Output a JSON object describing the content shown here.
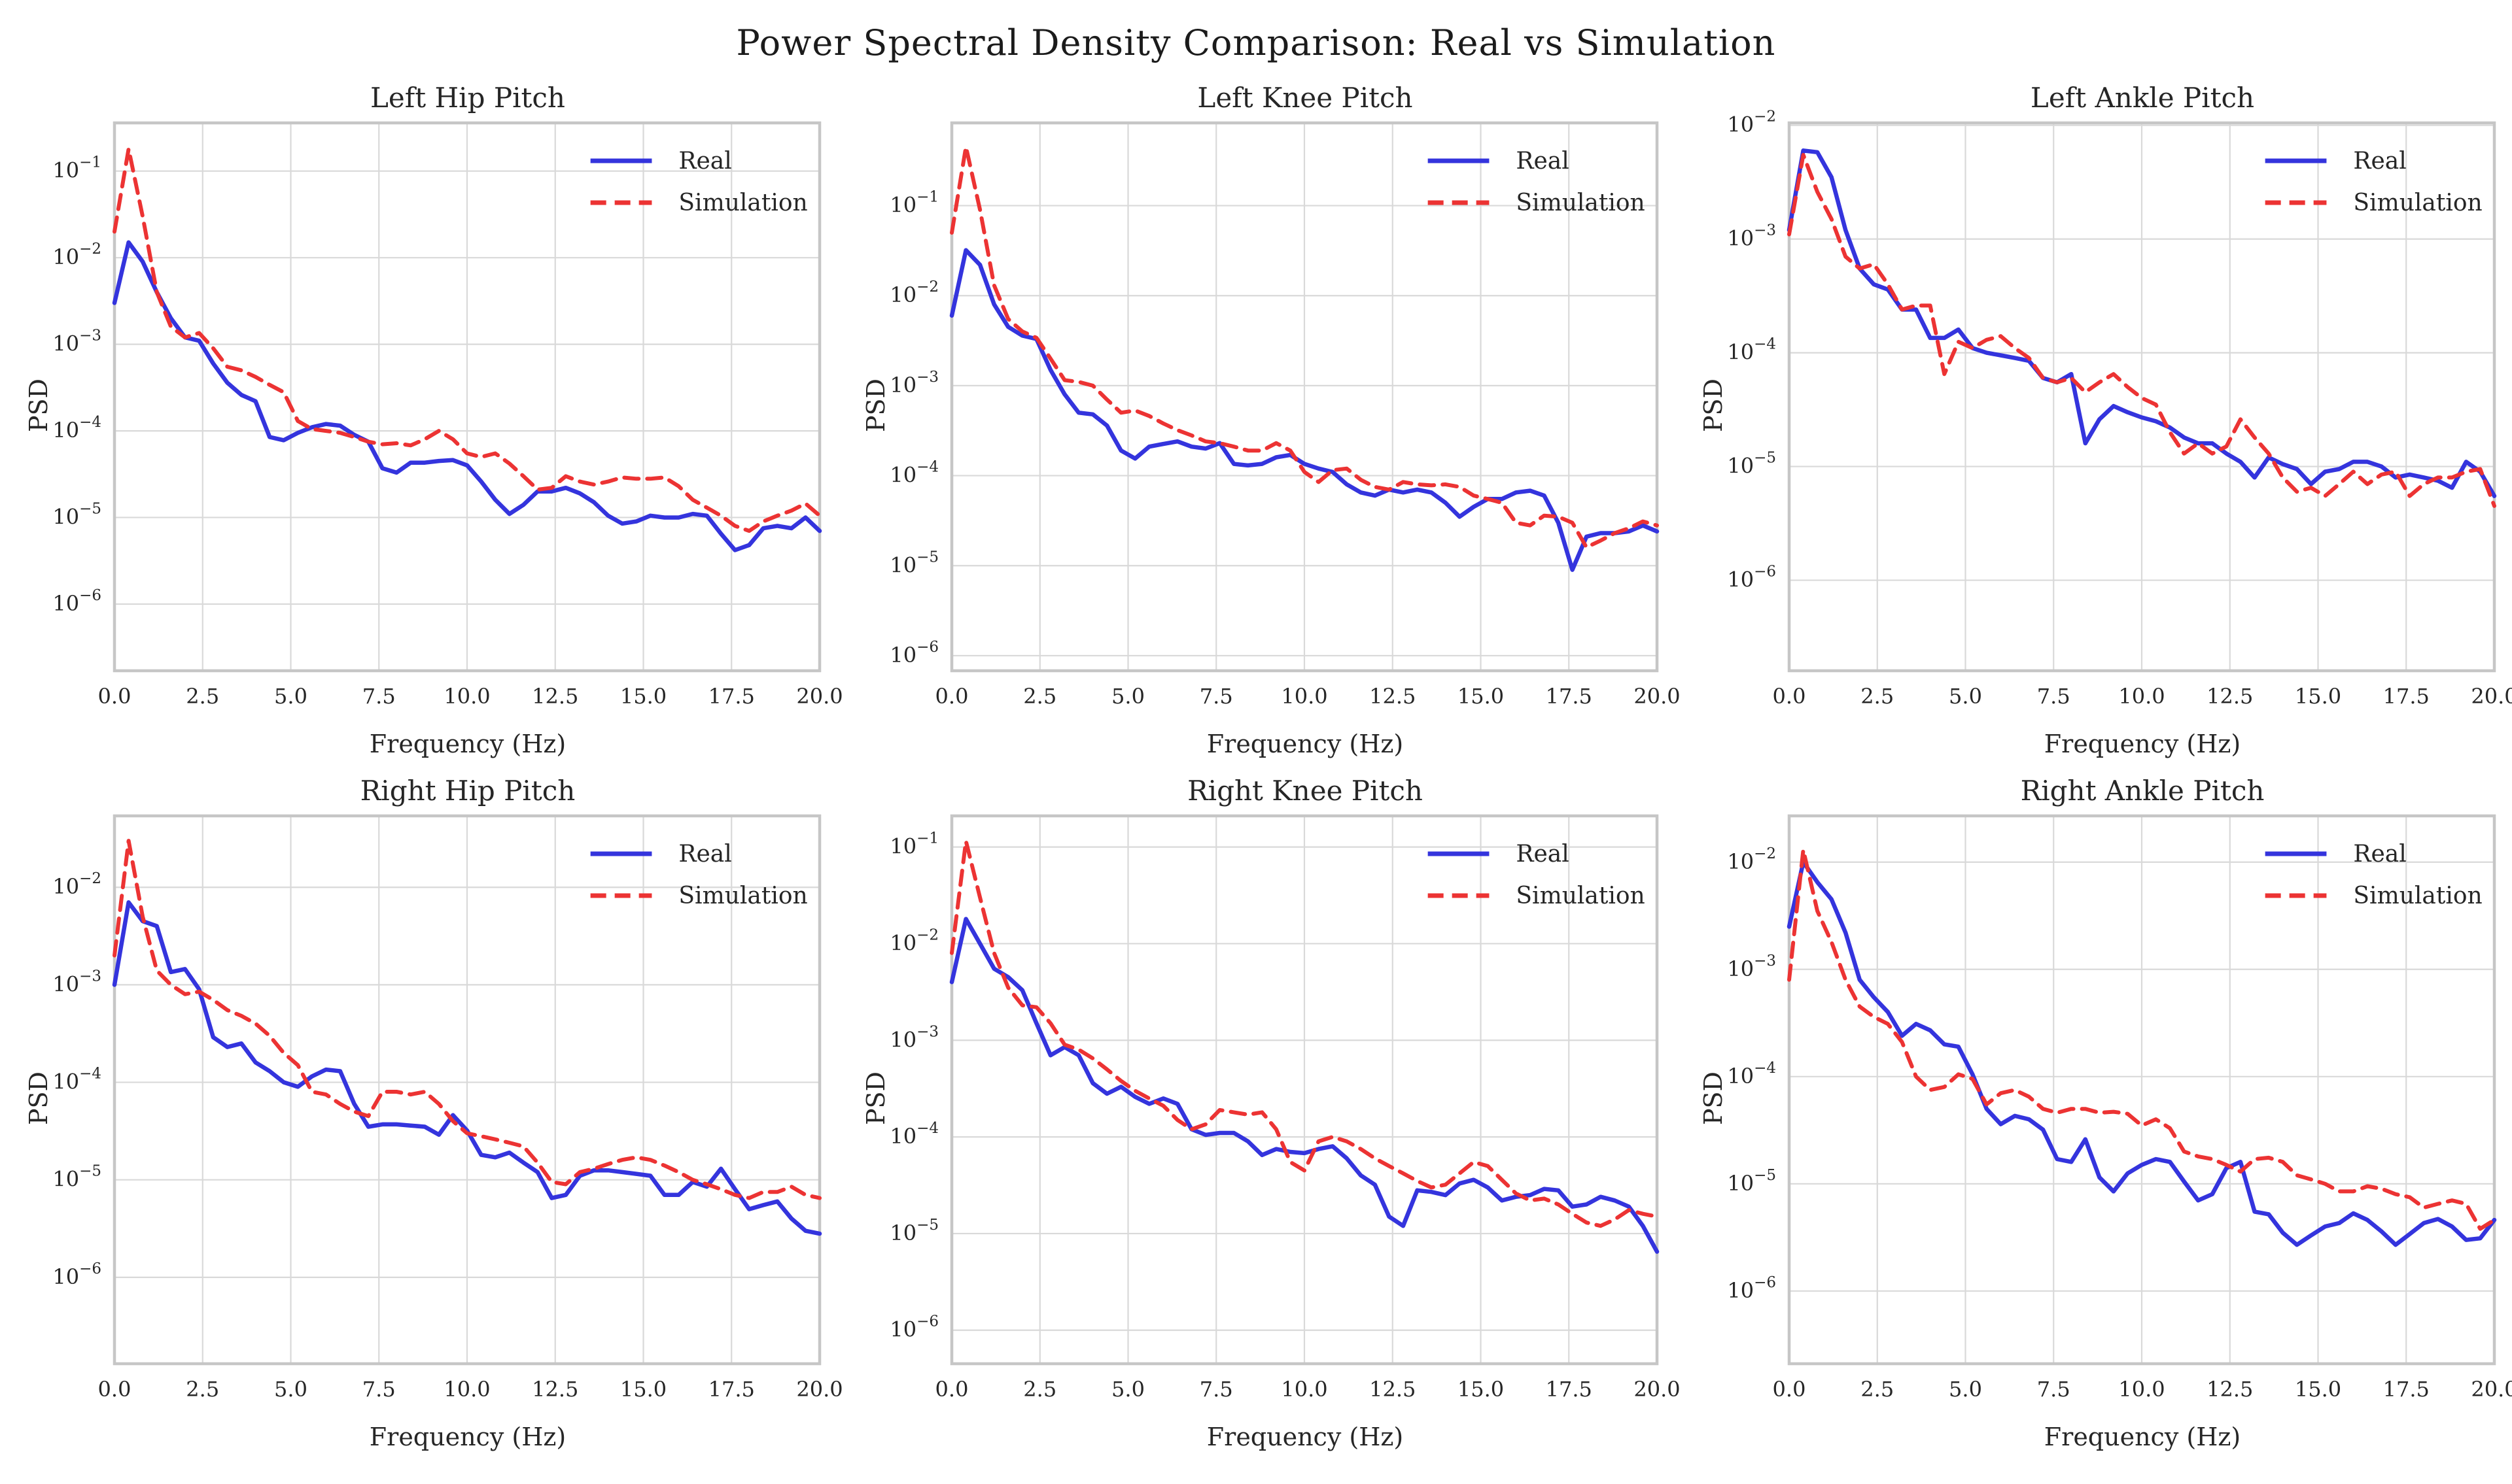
{
  "figure": {
    "title": "Power Spectral Density Comparison: Real vs Simulation"
  },
  "colors": {
    "real": "#3434dd",
    "simulation": "#ec3333",
    "grid": "#d9d9d9",
    "spine": "#c6c6c6",
    "text": "#262626"
  },
  "axes": {
    "xlabel": "Frequency (Hz)",
    "ylabel": "PSD",
    "xlim": [
      0,
      20
    ],
    "x_ticks": [
      0,
      2.5,
      5,
      7.5,
      10,
      12.5,
      15,
      17.5,
      20
    ],
    "x_tick_labels": [
      "0.0",
      "2.5",
      "5.0",
      "7.5",
      "10.0",
      "12.5",
      "15.0",
      "17.5",
      "20.0"
    ],
    "x": [
      0,
      0.4,
      0.8,
      1.2,
      1.6,
      2,
      2.4,
      2.8,
      3.2,
      3.6,
      4,
      4.4,
      4.8,
      5.2,
      5.6,
      6,
      6.4,
      6.8,
      7.2,
      7.6,
      8,
      8.4,
      8.8,
      9.2,
      9.6,
      10,
      10.4,
      10.8,
      11.2,
      11.6,
      12,
      12.4,
      12.8,
      13.2,
      13.6,
      14,
      14.4,
      14.8,
      15.2,
      15.6,
      16,
      16.4,
      16.8,
      17.2,
      17.6,
      18,
      18.4,
      18.8,
      19.2,
      19.6,
      20
    ]
  },
  "legend": {
    "real_label": "Real",
    "simulation_label": "Simulation",
    "position": "upper right",
    "frame": false
  },
  "chart_data": [
    {
      "type": "line",
      "title": "Left Hip Pitch",
      "xlabel": "Frequency (Hz)",
      "ylabel": "PSD",
      "yscale": "log",
      "ylim": [
        1.7e-07,
        0.36
      ],
      "y_tick_exponents": [
        -1,
        -2,
        -3,
        -4,
        -5,
        -6
      ],
      "series": [
        {
          "name": "Real",
          "values": [
            0.003,
            0.015,
            0.009,
            0.004,
            0.002,
            0.0012,
            0.0011,
            0.0006,
            0.00036,
            0.00026,
            0.00022,
            8.5e-05,
            7.8e-05,
            9.5e-05,
            0.00011,
            0.00012,
            0.000115,
            9e-05,
            7.5e-05,
            3.7e-05,
            3.3e-05,
            4.3e-05,
            4.3e-05,
            4.5e-05,
            4.6e-05,
            4e-05,
            2.6e-05,
            1.6e-05,
            1.1e-05,
            1.4e-05,
            2e-05,
            2e-05,
            2.2e-05,
            1.9e-05,
            1.5e-05,
            1.05e-05,
            8.5e-06,
            9e-06,
            1.05e-05,
            1e-05,
            1e-05,
            1.1e-05,
            1.05e-05,
            6.5e-06,
            4.2e-06,
            4.8e-06,
            7.5e-06,
            8e-06,
            7.5e-06,
            1e-05,
            7e-06
          ]
        },
        {
          "name": "Simulation",
          "values": [
            0.02,
            0.18,
            0.03,
            0.004,
            0.0016,
            0.0012,
            0.00135,
            0.0009,
            0.00055,
            0.0005,
            0.00042,
            0.00034,
            0.00028,
            0.00013,
            0.000105,
            0.0001,
            9.5e-05,
            8.5e-05,
            7.5e-05,
            7e-05,
            7.2e-05,
            6.8e-05,
            8e-05,
            0.0001,
            8e-05,
            5.5e-05,
            5e-05,
            5.5e-05,
            4.2e-05,
            3e-05,
            2.1e-05,
            2.2e-05,
            3e-05,
            2.6e-05,
            2.4e-05,
            2.6e-05,
            2.9e-05,
            2.8e-05,
            2.8e-05,
            2.9e-05,
            2.3e-05,
            1.6e-05,
            1.3e-05,
            1.05e-05,
            8e-06,
            7e-06,
            9e-06,
            1.05e-05,
            1.2e-05,
            1.45e-05,
            1.05e-05
          ]
        }
      ]
    },
    {
      "type": "line",
      "title": "Left Knee Pitch",
      "xlabel": "Frequency (Hz)",
      "ylabel": "PSD",
      "yscale": "log",
      "ylim": [
        6.8e-07,
        0.83
      ],
      "y_tick_exponents": [
        -1,
        -2,
        -3,
        -4,
        -5,
        -6
      ],
      "series": [
        {
          "name": "Real",
          "values": [
            0.006,
            0.032,
            0.022,
            0.008,
            0.0045,
            0.0036,
            0.0033,
            0.0015,
            0.0008,
            0.0005,
            0.00048,
            0.00036,
            0.00019,
            0.000155,
            0.00021,
            0.000225,
            0.00024,
            0.00021,
            0.0002,
            0.00023,
            0.000135,
            0.00013,
            0.000135,
            0.00016,
            0.00017,
            0.000135,
            0.00012,
            0.00011,
            8e-05,
            6.5e-05,
            6e-05,
            7e-05,
            6.5e-05,
            7e-05,
            6.5e-05,
            5e-05,
            3.5e-05,
            4.5e-05,
            5.5e-05,
            5.5e-05,
            6.5e-05,
            6.8e-05,
            6e-05,
            3e-05,
            9e-06,
            2.1e-05,
            2.3e-05,
            2.3e-05,
            2.4e-05,
            2.8e-05,
            2.4e-05
          ]
        },
        {
          "name": "Simulation",
          "values": [
            0.05,
            0.45,
            0.09,
            0.013,
            0.0055,
            0.004,
            0.0034,
            0.002,
            0.00115,
            0.0011,
            0.001,
            0.0007,
            0.0005,
            0.00053,
            0.00046,
            0.00038,
            0.00032,
            0.00028,
            0.00024,
            0.00023,
            0.00021,
            0.00019,
            0.00019,
            0.00023,
            0.00019,
            0.00011,
            8.5e-05,
            0.000115,
            0.00012,
            9e-05,
            7.5e-05,
            7e-05,
            8.5e-05,
            8e-05,
            7.8e-05,
            8e-05,
            7.5e-05,
            6e-05,
            5.5e-05,
            5e-05,
            3e-05,
            2.8e-05,
            3.6e-05,
            3.5e-05,
            3e-05,
            1.6e-05,
            1.9e-05,
            2.3e-05,
            2.6e-05,
            3.1e-05,
            2.8e-05
          ]
        }
      ]
    },
    {
      "type": "line",
      "title": "Left Ankle Pitch",
      "xlabel": "Frequency (Hz)",
      "ylabel": "PSD",
      "yscale": "log",
      "ylim": [
        1.6e-07,
        0.0105
      ],
      "y_tick_exponents": [
        -2,
        -3,
        -4,
        -5,
        -6
      ],
      "series": [
        {
          "name": "Real",
          "values": [
            0.0012,
            0.006,
            0.0058,
            0.0035,
            0.0012,
            0.00055,
            0.0004,
            0.00036,
            0.00024,
            0.00024,
            0.000135,
            0.000135,
            0.00016,
            0.00011,
            0.0001,
            9.5e-05,
            9e-05,
            8.5e-05,
            6e-05,
            5.5e-05,
            6.5e-05,
            1.6e-05,
            2.6e-05,
            3.4e-05,
            3e-05,
            2.7e-05,
            2.5e-05,
            2.2e-05,
            1.8e-05,
            1.6e-05,
            1.6e-05,
            1.3e-05,
            1.1e-05,
            8e-06,
            1.2e-05,
            1.05e-05,
            9.5e-06,
            7e-06,
            9e-06,
            9.5e-06,
            1.1e-05,
            1.1e-05,
            1e-05,
            8e-06,
            8.5e-06,
            8e-06,
            7.5e-06,
            6.5e-06,
            1.1e-05,
            9e-06,
            5.5e-06
          ]
        },
        {
          "name": "Simulation",
          "values": [
            0.0011,
            0.0055,
            0.0026,
            0.0015,
            0.0007,
            0.00055,
            0.0006,
            0.0004,
            0.00024,
            0.00026,
            0.00026,
            6.5e-05,
            0.000125,
            0.00011,
            0.00013,
            0.00014,
            0.00011,
            9e-05,
            6e-05,
            5.5e-05,
            6e-05,
            4.5e-05,
            5.5e-05,
            6.5e-05,
            5e-05,
            4e-05,
            3.5e-05,
            2e-05,
            1.3e-05,
            1.6e-05,
            1.3e-05,
            1.5e-05,
            2.6e-05,
            1.8e-05,
            1.3e-05,
            8e-06,
            6e-06,
            6.5e-06,
            5.5e-06,
            7e-06,
            9e-06,
            7e-06,
            8.5e-06,
            9e-06,
            5.5e-06,
            7e-06,
            8e-06,
            8e-06,
            9e-06,
            9.5e-06,
            4.5e-06
          ]
        }
      ]
    },
    {
      "type": "line",
      "title": "Right Hip Pitch",
      "xlabel": "Frequency (Hz)",
      "ylabel": "PSD",
      "yscale": "log",
      "ylim": [
        1.3e-07,
        0.054
      ],
      "y_tick_exponents": [
        -2,
        -3,
        -4,
        -5,
        -6
      ],
      "series": [
        {
          "name": "Real",
          "values": [
            0.001,
            0.007,
            0.0045,
            0.004,
            0.00135,
            0.00145,
            0.0009,
            0.00029,
            0.00023,
            0.00025,
            0.00016,
            0.00013,
            0.0001,
            9e-05,
            0.000115,
            0.000135,
            0.00013,
            6e-05,
            3.5e-05,
            3.7e-05,
            3.7e-05,
            3.6e-05,
            3.5e-05,
            2.9e-05,
            4.6e-05,
            3.2e-05,
            1.8e-05,
            1.7e-05,
            1.9e-05,
            1.5e-05,
            1.2e-05,
            6.5e-06,
            7e-06,
            1.1e-05,
            1.25e-05,
            1.25e-05,
            1.2e-05,
            1.15e-05,
            1.1e-05,
            7e-06,
            7e-06,
            9.5e-06,
            8.5e-06,
            1.3e-05,
            8e-06,
            5e-06,
            5.5e-06,
            6e-06,
            4e-06,
            3e-06,
            2.8e-06
          ]
        },
        {
          "name": "Simulation",
          "values": [
            0.002,
            0.03,
            0.005,
            0.0014,
            0.001,
            0.0008,
            0.00085,
            0.0007,
            0.00055,
            0.00048,
            0.0004,
            0.0003,
            0.0002,
            0.00015,
            8e-05,
            7.5e-05,
            6e-05,
            5e-05,
            4.5e-05,
            8e-05,
            8e-05,
            7.5e-05,
            8e-05,
            6e-05,
            4e-05,
            3e-05,
            2.8e-05,
            2.6e-05,
            2.4e-05,
            2.2e-05,
            1.5e-05,
            9.5e-06,
            9e-06,
            1.2e-05,
            1.3e-05,
            1.45e-05,
            1.6e-05,
            1.7e-05,
            1.6e-05,
            1.4e-05,
            1.2e-05,
            1e-05,
            9e-06,
            8e-06,
            7e-06,
            6.5e-06,
            7.5e-06,
            7.5e-06,
            8.5e-06,
            7e-06,
            6.5e-06
          ]
        }
      ]
    },
    {
      "type": "line",
      "title": "Right Knee Pitch",
      "xlabel": "Frequency (Hz)",
      "ylabel": "PSD",
      "yscale": "log",
      "ylim": [
        4.5e-07,
        0.21
      ],
      "y_tick_exponents": [
        -1,
        -2,
        -3,
        -4,
        -5,
        -6
      ],
      "series": [
        {
          "name": "Real",
          "values": [
            0.004,
            0.018,
            0.01,
            0.0055,
            0.0045,
            0.0033,
            0.0015,
            0.0007,
            0.00085,
            0.0007,
            0.00036,
            0.00028,
            0.00033,
            0.00026,
            0.00022,
            0.00025,
            0.00022,
            0.00012,
            0.000105,
            0.00011,
            0.00011,
            9e-05,
            6.5e-05,
            7.5e-05,
            7e-05,
            6.8e-05,
            7.5e-05,
            8e-05,
            6e-05,
            4e-05,
            3.2e-05,
            1.5e-05,
            1.2e-05,
            2.8e-05,
            2.7e-05,
            2.5e-05,
            3.3e-05,
            3.6e-05,
            3e-05,
            2.2e-05,
            2.4e-05,
            2.5e-05,
            2.9e-05,
            2.8e-05,
            1.9e-05,
            2e-05,
            2.4e-05,
            2.2e-05,
            1.9e-05,
            1.2e-05,
            6.5e-06
          ]
        },
        {
          "name": "Simulation",
          "values": [
            0.008,
            0.115,
            0.03,
            0.008,
            0.0035,
            0.0023,
            0.0022,
            0.0015,
            0.0009,
            0.0008,
            0.00065,
            0.0005,
            0.00038,
            0.0003,
            0.00025,
            0.00021,
            0.00015,
            0.00012,
            0.000135,
            0.00019,
            0.00018,
            0.00017,
            0.00018,
            0.00012,
            5.5e-05,
            4.5e-05,
            9e-05,
            0.0001,
            9e-05,
            7.5e-05,
            6e-05,
            5e-05,
            4.2e-05,
            3.5e-05,
            3e-05,
            3.2e-05,
            4.2e-05,
            5.5e-05,
            5e-05,
            3.6e-05,
            2.6e-05,
            2.2e-05,
            2.3e-05,
            2e-05,
            1.6e-05,
            1.3e-05,
            1.2e-05,
            1.4e-05,
            1.75e-05,
            1.6e-05,
            1.5e-05
          ]
        }
      ]
    },
    {
      "type": "line",
      "title": "Right Ankle Pitch",
      "xlabel": "Frequency (Hz)",
      "ylabel": "PSD",
      "yscale": "log",
      "ylim": [
        2.1e-07,
        0.027
      ],
      "y_tick_exponents": [
        -2,
        -3,
        -4,
        -5,
        -6
      ],
      "series": [
        {
          "name": "Real",
          "values": [
            0.0025,
            0.01,
            0.0065,
            0.0045,
            0.0022,
            0.0008,
            0.00055,
            0.0004,
            0.00024,
            0.00031,
            0.00027,
            0.0002,
            0.00019,
            0.000105,
            5e-05,
            3.6e-05,
            4.3e-05,
            4e-05,
            3.2e-05,
            1.7e-05,
            1.6e-05,
            2.6e-05,
            1.15e-05,
            8.5e-06,
            1.25e-05,
            1.5e-05,
            1.7e-05,
            1.6e-05,
            1.05e-05,
            7e-06,
            8e-06,
            1.4e-05,
            1.6e-05,
            5.5e-06,
            5.2e-06,
            3.5e-06,
            2.7e-06,
            3.3e-06,
            4e-06,
            4.3e-06,
            5.3e-06,
            4.6e-06,
            3.6e-06,
            2.7e-06,
            3.4e-06,
            4.3e-06,
            4.7e-06,
            4e-06,
            3e-06,
            3.1e-06,
            4.6e-06
          ]
        },
        {
          "name": "Simulation",
          "values": [
            0.0008,
            0.013,
            0.0035,
            0.0018,
            0.0008,
            0.00045,
            0.00036,
            0.00031,
            0.00021,
            0.0001,
            7.5e-05,
            8e-05,
            0.000105,
            9.5e-05,
            5.5e-05,
            7e-05,
            7.5e-05,
            6.5e-05,
            5e-05,
            4.6e-05,
            5e-05,
            5e-05,
            4.6e-05,
            4.7e-05,
            4.5e-05,
            3.5e-05,
            4e-05,
            3.3e-05,
            2e-05,
            1.8e-05,
            1.7e-05,
            1.5e-05,
            1.3e-05,
            1.7e-05,
            1.75e-05,
            1.6e-05,
            1.2e-05,
            1.1e-05,
            1e-05,
            8.5e-06,
            8.5e-06,
            9.5e-06,
            9e-06,
            8e-06,
            7.5e-06,
            6e-06,
            6.5e-06,
            7e-06,
            6.5e-06,
            3.8e-06,
            4.6e-06
          ]
        }
      ]
    }
  ]
}
